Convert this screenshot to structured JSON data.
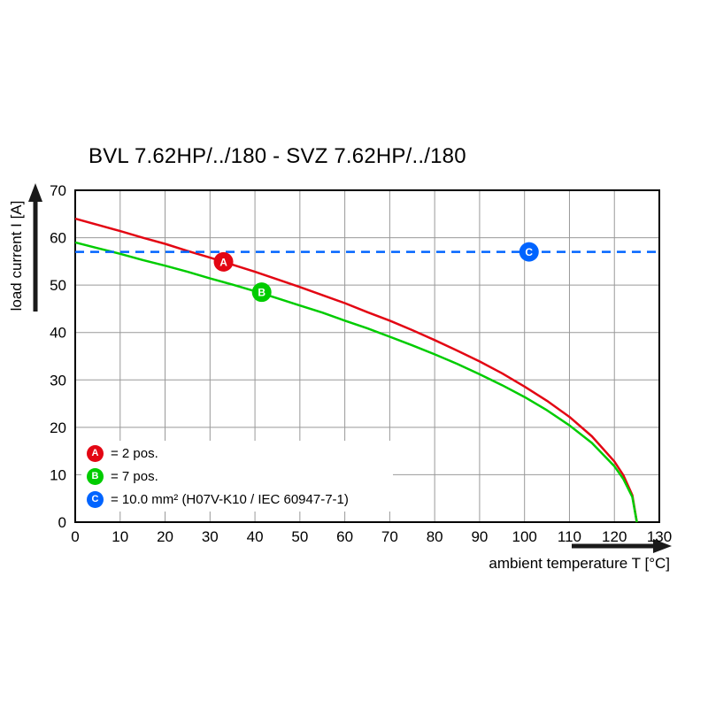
{
  "title": "BVL 7.62HP/../180 - SVZ 7.62HP/../180",
  "chart_data": {
    "type": "line",
    "title": "BVL 7.62HP/../180 - SVZ 7.62HP/../180",
    "xlabel": "ambient temperature T [°C]",
    "ylabel": "load current I [A]",
    "xlim": [
      0,
      130
    ],
    "ylim": [
      0,
      70
    ],
    "xticks": [
      0,
      10,
      20,
      30,
      40,
      50,
      60,
      70,
      80,
      90,
      100,
      110,
      120,
      130
    ],
    "yticks": [
      0,
      10,
      20,
      30,
      40,
      50,
      60,
      70
    ],
    "grid": true,
    "series": [
      {
        "key": "A",
        "color": "#e30613",
        "style": "solid",
        "points": [
          [
            0,
            64
          ],
          [
            5,
            62.7
          ],
          [
            10,
            61.4
          ],
          [
            15,
            60
          ],
          [
            20,
            58.7
          ],
          [
            25,
            57.2
          ],
          [
            30,
            55.8
          ],
          [
            35,
            54.3
          ],
          [
            40,
            52.8
          ],
          [
            45,
            51.2
          ],
          [
            50,
            49.6
          ],
          [
            55,
            47.9
          ],
          [
            60,
            46.2
          ],
          [
            65,
            44.3
          ],
          [
            70,
            42.5
          ],
          [
            75,
            40.5
          ],
          [
            80,
            38.4
          ],
          [
            85,
            36.2
          ],
          [
            90,
            33.9
          ],
          [
            95,
            31.4
          ],
          [
            100,
            28.6
          ],
          [
            105,
            25.6
          ],
          [
            110,
            22.2
          ],
          [
            115,
            18.1
          ],
          [
            120,
            12.8
          ],
          [
            122,
            9.9
          ],
          [
            124,
            5.7
          ],
          [
            125,
            0
          ]
        ]
      },
      {
        "key": "B",
        "color": "#00cc00",
        "style": "solid",
        "points": [
          [
            0,
            59
          ],
          [
            5,
            57.8
          ],
          [
            10,
            56.6
          ],
          [
            15,
            55.3
          ],
          [
            20,
            54.1
          ],
          [
            25,
            52.8
          ],
          [
            30,
            51.4
          ],
          [
            35,
            50.1
          ],
          [
            40,
            48.7
          ],
          [
            45,
            47.2
          ],
          [
            50,
            45.7
          ],
          [
            55,
            44.2
          ],
          [
            60,
            42.5
          ],
          [
            65,
            40.9
          ],
          [
            70,
            39.1
          ],
          [
            75,
            37.3
          ],
          [
            80,
            35.4
          ],
          [
            85,
            33.4
          ],
          [
            90,
            31.2
          ],
          [
            95,
            28.9
          ],
          [
            100,
            26.4
          ],
          [
            105,
            23.6
          ],
          [
            110,
            20.4
          ],
          [
            115,
            16.7
          ],
          [
            120,
            11.8
          ],
          [
            122,
            9.1
          ],
          [
            124,
            5.3
          ],
          [
            125,
            0
          ]
        ]
      },
      {
        "key": "C",
        "color": "#0064ff",
        "style": "dashed",
        "dash": "10 7",
        "points": [
          [
            0,
            57
          ],
          [
            130,
            57
          ]
        ]
      }
    ],
    "markers": [
      {
        "key": "A",
        "x": 33,
        "y": 54.9
      },
      {
        "key": "B",
        "x": 41.5,
        "y": 48.5
      },
      {
        "key": "C",
        "x": 101,
        "y": 57
      }
    ],
    "legend": {
      "position": "inside bottom-left",
      "items": [
        {
          "key": "A",
          "label": "= 2 pos."
        },
        {
          "key": "B",
          "label": "= 7 pos."
        },
        {
          "key": "C",
          "label": "= 10.0 mm² (H07V-K10 / IEC 60947-7-1)"
        }
      ]
    }
  }
}
